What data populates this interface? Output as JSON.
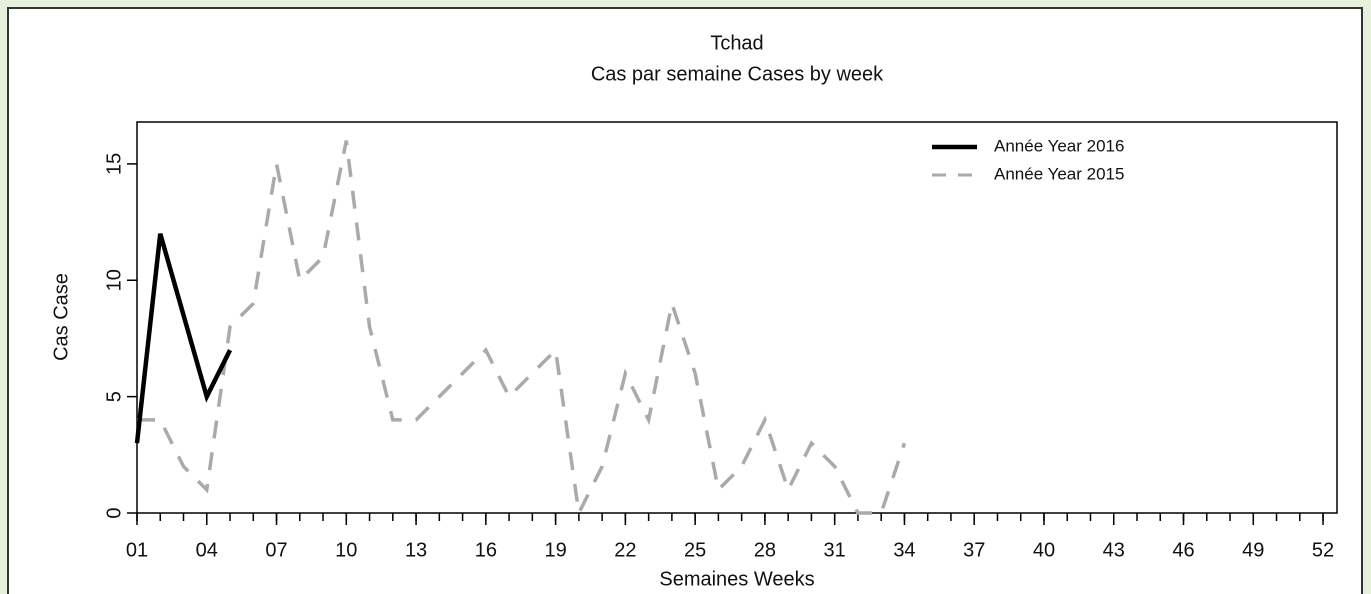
{
  "chart_data": {
    "type": "line",
    "title": "Tchad",
    "subtitle": "Cas par semaine Cases by week",
    "x_label": "Semaines Weeks",
    "y_label": "Cas Case",
    "x": [
      1,
      2,
      3,
      4,
      5,
      6,
      7,
      8,
      9,
      10,
      11,
      12,
      13,
      14,
      15,
      16,
      17,
      18,
      19,
      20,
      21,
      22,
      23,
      24,
      25,
      26,
      27,
      28,
      29,
      30,
      31,
      32,
      33,
      34
    ],
    "series": [
      {
        "name": "Année Year 2016",
        "color": "#000000",
        "dash": false,
        "values": [
          3,
          12,
          8.5,
          5,
          7,
          null,
          null,
          null,
          null,
          null,
          null,
          null,
          null,
          null,
          null,
          null,
          null,
          null,
          null,
          null,
          null,
          null,
          null,
          null,
          null,
          null,
          null,
          null,
          null,
          null,
          null,
          null,
          null,
          null
        ]
      },
      {
        "name": "Année Year 2015",
        "color": "#aaaaaa",
        "dash": true,
        "values": [
          4,
          4,
          2,
          1,
          8,
          9,
          15,
          10,
          11,
          16,
          8,
          4,
          4,
          5,
          6,
          7,
          5,
          6,
          7,
          0,
          2,
          6,
          4,
          9,
          6,
          1,
          2,
          4,
          1,
          3,
          2,
          0,
          0,
          3
        ]
      }
    ],
    "xlim": [
      1,
      52.6
    ],
    "xticks": [
      {
        "value": 1,
        "label": "01"
      },
      {
        "value": 4,
        "label": "04"
      },
      {
        "value": 7,
        "label": "07"
      },
      10,
      13,
      16,
      19,
      22,
      25,
      28,
      31,
      34,
      37,
      40,
      43,
      46,
      49,
      52
    ],
    "ylim": [
      0,
      16.8
    ],
    "yticks": [
      0,
      5,
      10,
      15
    ],
    "legend": "top-right"
  }
}
